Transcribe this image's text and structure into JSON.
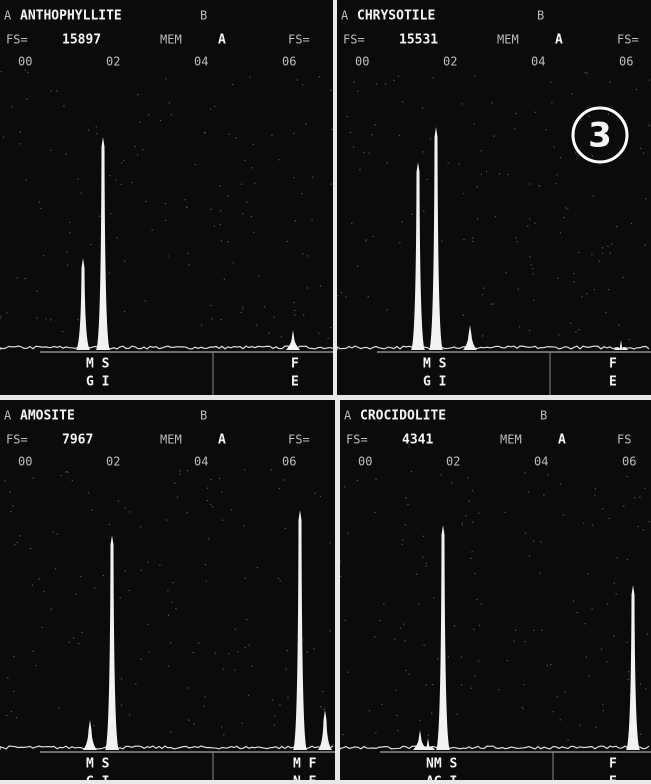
{
  "panels": [
    {
      "prefix": "A",
      "mineral": "ANTHOPHYLLITE",
      "suffix": "B",
      "fs_label": "FS=",
      "fs_value": 15897,
      "mem_label": "MEM",
      "mem_value": "A",
      "fs_right": "FS=",
      "ticks": [
        "00",
        "02",
        "04",
        "06"
      ],
      "elements_left": [
        "M S",
        "G I"
      ],
      "elements_right": [
        "F",
        "E"
      ]
    },
    {
      "prefix": "A",
      "mineral": "CHRYSOTILE",
      "suffix": "B",
      "fs_label": "FS=",
      "fs_value": 15531,
      "mem_label": "MEM",
      "mem_value": "A",
      "fs_right": "FS=",
      "ticks": [
        "00",
        "02",
        "04",
        "06"
      ],
      "elements_left": [
        "M S",
        "G I"
      ],
      "elements_right": [
        "F",
        "E"
      ],
      "badge": "3"
    },
    {
      "prefix": "A",
      "mineral": "AMOSITE",
      "suffix": "B",
      "fs_label": "FS=",
      "fs_value": 7967,
      "mem_label": "MEM",
      "mem_value": "A",
      "fs_right": "FS=",
      "ticks": [
        "00",
        "02",
        "04",
        "06"
      ],
      "elements_left": [
        "M S",
        "G I"
      ],
      "elements_right": [
        "M F",
        "N E"
      ]
    },
    {
      "prefix": "A",
      "mineral": "CROCIDOLITE",
      "suffix": "B",
      "fs_label": "FS=",
      "fs_value": 4341,
      "mem_label": "MEM",
      "mem_value": "A",
      "fs_right": "FS",
      "ticks": [
        "00",
        "02",
        "04",
        "06"
      ],
      "elements_left": [
        "NM S",
        "AG I"
      ],
      "elements_right": [
        "F",
        "E"
      ]
    }
  ]
}
